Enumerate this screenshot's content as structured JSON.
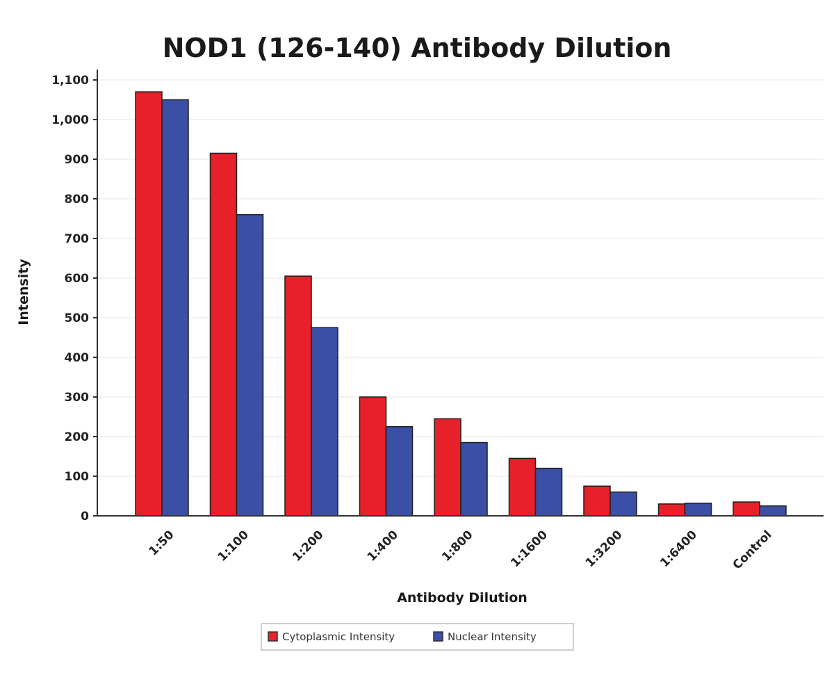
{
  "chart_data": {
    "type": "bar",
    "title": "NOD1 (126-140) Antibody Dilution",
    "xlabel": "Antibody Dilution",
    "ylabel": "Intensity",
    "categories": [
      "1:50",
      "1:100",
      "1:200",
      "1:400",
      "1:800",
      "1:1600",
      "1:3200",
      "1:6400",
      "Control"
    ],
    "series": [
      {
        "name": "Cytoplasmic Intensity",
        "color": "#e8202a",
        "values": [
          1070,
          915,
          605,
          300,
          245,
          145,
          75,
          30,
          35
        ]
      },
      {
        "name": "Nuclear Intensity",
        "color": "#3b4fa6",
        "values": [
          1050,
          760,
          475,
          225,
          185,
          120,
          60,
          32,
          25
        ]
      }
    ],
    "ylim": [
      0,
      1100
    ],
    "yticks": [
      0,
      100,
      200,
      300,
      400,
      500,
      600,
      700,
      800,
      900,
      1000,
      1100
    ],
    "ytick_labels": [
      "0",
      "100",
      "200",
      "300",
      "400",
      "500",
      "600",
      "700",
      "800",
      "900",
      "1,000",
      "1,100"
    ],
    "grid": true,
    "legend_position": "bottom-center"
  }
}
